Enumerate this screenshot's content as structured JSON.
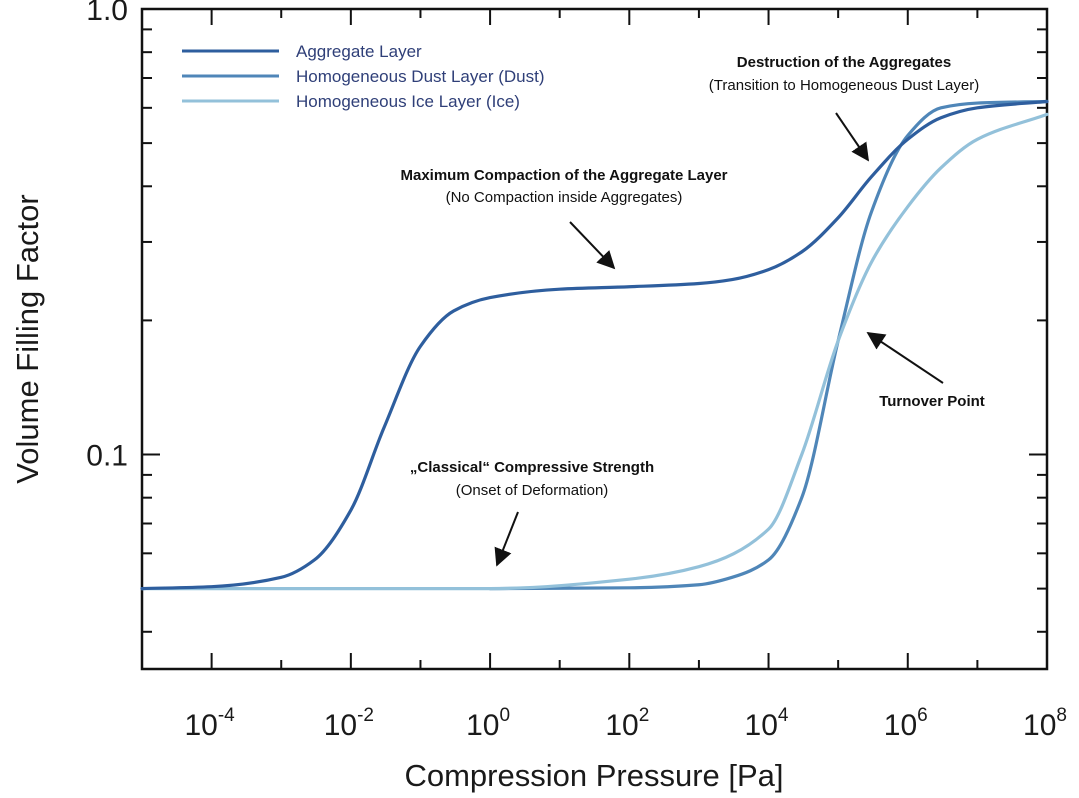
{
  "chart_data": {
    "type": "line",
    "xlabel": "Compression Pressure [Pa]",
    "ylabel": "Volume Filling Factor",
    "xscale": "log",
    "yscale": "log",
    "xlim": [
      1e-05,
      100000000.0
    ],
    "ylim": [
      0.033,
      1.0
    ],
    "x_tick_labels": [
      {
        "base": "10",
        "exp": "-4",
        "value": 0.0001
      },
      {
        "base": "10",
        "exp": "-2",
        "value": 0.01
      },
      {
        "base": "10",
        "exp": "0",
        "value": 1
      },
      {
        "base": "10",
        "exp": "2",
        "value": 100.0
      },
      {
        "base": "10",
        "exp": "4",
        "value": 10000.0
      },
      {
        "base": "10",
        "exp": "6",
        "value": 1000000.0
      },
      {
        "base": "10",
        "exp": "8",
        "value": 100000000.0
      }
    ],
    "y_tick_labels": [
      {
        "label": "0.1",
        "value": 0.1
      },
      {
        "label": "1.0",
        "value": 1.0
      }
    ],
    "grid": false,
    "legend_position": "top-left",
    "series": [
      {
        "name": "Aggregate Layer",
        "color": "#2e5e9e",
        "x": [
          1e-05,
          0.0001,
          0.001,
          0.003,
          0.01,
          0.03,
          0.1,
          0.3,
          1,
          10.0,
          100.0,
          1000.0,
          3000.0,
          10000.0,
          30000.0,
          100000.0,
          300000.0,
          1000000.0,
          3000000.0,
          10000000.0,
          100000000.0
        ],
        "y": [
          0.05,
          0.0505,
          0.053,
          0.058,
          0.075,
          0.115,
          0.175,
          0.21,
          0.225,
          0.235,
          0.238,
          0.242,
          0.247,
          0.26,
          0.285,
          0.34,
          0.42,
          0.51,
          0.57,
          0.6,
          0.62
        ]
      },
      {
        "name": "Homogeneous Dust Layer (Dust)",
        "color": "#4f86b8",
        "x": [
          1,
          100.0,
          1000.0,
          3000.0,
          10000.0,
          30000.0,
          100000.0,
          300000.0,
          1000000.0,
          3000000.0,
          10000000.0,
          100000000.0
        ],
        "y": [
          0.05,
          0.0502,
          0.051,
          0.053,
          0.058,
          0.08,
          0.18,
          0.35,
          0.52,
          0.6,
          0.615,
          0.62
        ]
      },
      {
        "name": "Homogeneous Ice Layer (Ice)",
        "color": "#93c1da",
        "x": [
          1e-05,
          0.01,
          1,
          100.0,
          1000.0,
          10000.0,
          30000.0,
          100000.0,
          300000.0,
          1000000.0,
          3000000.0,
          10000000.0,
          100000000.0
        ],
        "y": [
          0.05,
          0.05,
          0.05,
          0.0525,
          0.056,
          0.068,
          0.1,
          0.18,
          0.27,
          0.36,
          0.44,
          0.51,
          0.58
        ]
      }
    ],
    "annotations": [
      {
        "bold": "Destruction of the Aggregates",
        "normal": "(Transition to Homogeneous Dust Layer)"
      },
      {
        "bold": "Maximum Compaction of the Aggregate Layer",
        "normal": "(No Compaction inside Aggregates)"
      },
      {
        "bold": "Turnover Point",
        "normal": ""
      },
      {
        "bold": "„Classical“ Compressive Strength",
        "normal": "(Onset of Deformation)"
      }
    ]
  }
}
